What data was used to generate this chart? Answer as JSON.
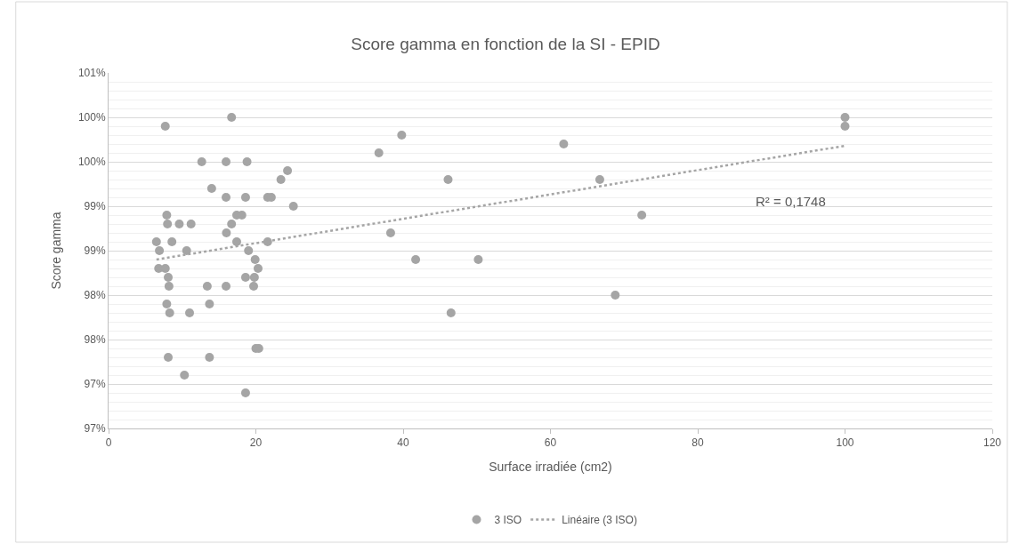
{
  "chart_data": {
    "type": "scatter",
    "title": "Score gamma en fonction de la SI - EPID",
    "xlabel": "Surface irradiée (cm2)",
    "ylabel": "Score gamma",
    "series": [
      {
        "name": "3 ISO",
        "color": "#a5a5a5",
        "marker": "circle",
        "x": [
          7.7,
          16.7,
          12.65,
          15.95,
          18.8,
          24.3,
          23.4,
          14.0,
          15.95,
          18.6,
          21.6,
          22.1,
          25.1,
          7.9,
          17.4,
          18.1,
          8.0,
          9.6,
          11.2,
          16.7,
          16.0,
          6.5,
          8.6,
          17.4,
          21.6,
          6.9,
          10.6,
          19.0,
          19.9,
          6.8,
          7.7,
          20.3,
          8.1,
          18.6,
          19.8,
          8.2,
          13.4,
          15.95,
          19.7,
          7.9,
          13.7,
          8.3,
          11.0,
          20.0,
          20.4,
          8.1,
          13.7,
          10.3,
          18.6,
          39.8,
          36.7,
          61.8,
          46.1,
          66.7,
          72.4,
          38.3,
          41.7,
          50.2,
          68.8,
          46.5,
          100,
          100
        ],
        "values": [
          99.9,
          100.0,
          99.5,
          99.5,
          99.5,
          99.4,
          99.3,
          99.2,
          99.1,
          99.1,
          99.1,
          99.1,
          99.0,
          98.9,
          98.9,
          98.9,
          98.8,
          98.8,
          98.8,
          98.8,
          98.7,
          98.6,
          98.6,
          98.6,
          98.6,
          98.5,
          98.5,
          98.5,
          98.4,
          98.3,
          98.3,
          98.3,
          98.2,
          98.2,
          98.2,
          98.1,
          98.1,
          98.1,
          98.1,
          97.9,
          97.9,
          97.8,
          97.8,
          97.4,
          97.4,
          97.3,
          97.3,
          97.1,
          96.9,
          99.8,
          99.6,
          99.7,
          99.3,
          99.3,
          98.9,
          98.7,
          98.4,
          98.4,
          98.0,
          97.8,
          100.0,
          99.9
        ]
      },
      {
        "name": "Linéaire (3 ISO)",
        "type": "line",
        "color": "#a5a5a5",
        "marker": "none",
        "line_style": "dotted",
        "x": [
          6.5,
          100
        ],
        "values": [
          98.4,
          99.68
        ]
      }
    ],
    "xlim": [
      0,
      120
    ],
    "xticks": [
      0,
      20,
      40,
      60,
      80,
      100,
      120
    ],
    "ylim": [
      96.5,
      100.5
    ],
    "yticks": [
      {
        "value": 96.5,
        "label": "97%"
      },
      {
        "value": 97.0,
        "label": "97%"
      },
      {
        "value": 97.5,
        "label": "98%"
      },
      {
        "value": 98.0,
        "label": "98%"
      },
      {
        "value": 98.5,
        "label": "99%"
      },
      {
        "value": 99.0,
        "label": "99%"
      },
      {
        "value": 99.5,
        "label": "100%"
      },
      {
        "value": 100.0,
        "label": "100%"
      },
      {
        "value": 100.5,
        "label": "101%"
      }
    ],
    "annotations": [
      "R² = 0,1748"
    ],
    "grid": "y",
    "legend": "bottom"
  }
}
